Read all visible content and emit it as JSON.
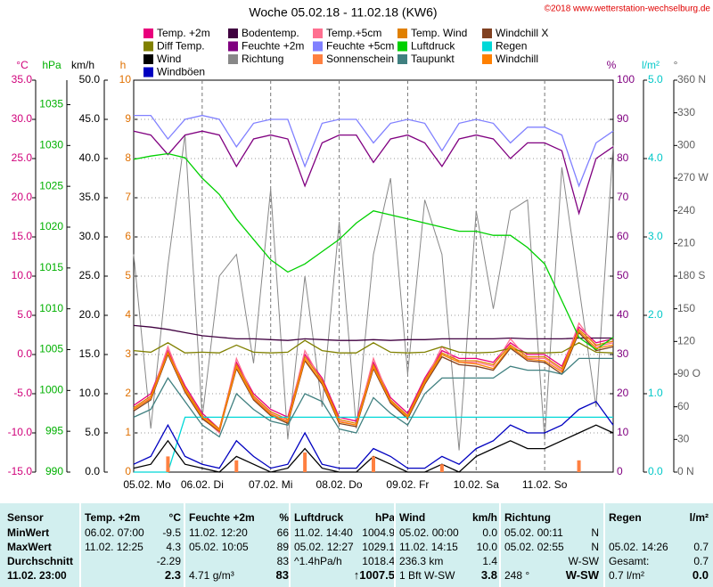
{
  "chart_data": {
    "type": "line",
    "title": "Woche 05.02.18 - 11.02.18 (KW6)",
    "copyright": "©2018 www.wetterstation-wechselburg.de",
    "grid": true,
    "xlim": [
      0,
      168
    ],
    "xticks": [
      {
        "value": 0,
        "label": "05.02.  Mo"
      },
      {
        "value": 24,
        "label": "06.02.  Di"
      },
      {
        "value": 48,
        "label": "07.02.  Mi"
      },
      {
        "value": 72,
        "label": "08.02.  Do"
      },
      {
        "value": 96,
        "label": "09.02.  Fr"
      },
      {
        "value": 120,
        "label": "10.02.  Sa"
      },
      {
        "value": 144,
        "label": "11.02.  So"
      }
    ],
    "axes": [
      {
        "unit": "°C",
        "color": "#d0007a",
        "lim": [
          -15,
          35
        ],
        "ticks": [
          {
            "value": -15,
            "label": "-15.0"
          },
          {
            "value": -10,
            "label": "-10.0"
          },
          {
            "value": -5,
            "label": "-5.0"
          },
          {
            "value": 0,
            "label": "0.0"
          },
          {
            "value": 5,
            "label": "5.0"
          },
          {
            "value": 10,
            "label": "10.0"
          },
          {
            "value": 15,
            "label": "15.0"
          },
          {
            "value": 20,
            "label": "20.0"
          },
          {
            "value": 25,
            "label": "25.0"
          },
          {
            "value": 30,
            "label": "30.0"
          },
          {
            "value": 35,
            "label": "35.0"
          }
        ]
      },
      {
        "unit": "hPa",
        "color": "#00b000",
        "lim": [
          990,
          1038
        ],
        "ticks": [
          990,
          995,
          1000,
          1005,
          1010,
          1015,
          1020,
          1025,
          1030,
          1035
        ]
      },
      {
        "unit": "km/h",
        "color": "#000000",
        "lim": [
          0,
          50
        ],
        "ticks": [
          {
            "value": 0,
            "label": "0.0"
          },
          {
            "value": 5,
            "label": "5.0"
          },
          {
            "value": 10,
            "label": "10.0"
          },
          {
            "value": 15,
            "label": "15.0"
          },
          {
            "value": 20,
            "label": "20.0"
          },
          {
            "value": 25,
            "label": "25.0"
          },
          {
            "value": 30,
            "label": "30.0"
          },
          {
            "value": 35,
            "label": "35.0"
          },
          {
            "value": 40,
            "label": "40.0"
          },
          {
            "value": 45,
            "label": "45.0"
          },
          {
            "value": 50,
            "label": "50.0"
          }
        ]
      },
      {
        "unit": "h",
        "color": "#e07000",
        "lim": [
          0,
          10
        ],
        "ticks": [
          0,
          1,
          2,
          3,
          4,
          5,
          6,
          7,
          8,
          9,
          10
        ]
      },
      {
        "unit": "%",
        "color": "#800080",
        "lim": [
          0,
          100
        ],
        "ticks": [
          0,
          10,
          20,
          30,
          40,
          50,
          60,
          70,
          80,
          90,
          100
        ]
      },
      {
        "unit": "l/m²",
        "color": "#00c8c8",
        "lim": [
          0,
          5
        ],
        "ticks": [
          {
            "value": 0,
            "label": "0.0"
          },
          {
            "value": 1,
            "label": "1.0"
          },
          {
            "value": 2,
            "label": "2.0"
          },
          {
            "value": 3,
            "label": "3.0"
          },
          {
            "value": 4,
            "label": "4.0"
          },
          {
            "value": 5,
            "label": "5.0"
          }
        ]
      },
      {
        "unit": "°",
        "color": "#606060",
        "lim": [
          0,
          360
        ],
        "ticks": [
          {
            "value": 0,
            "label": "0 N"
          },
          30,
          60,
          {
            "value": 90,
            "label": "90 O"
          },
          120,
          150,
          {
            "value": 180,
            "label": "180 S"
          },
          210,
          240,
          {
            "value": 270,
            "label": "270 W"
          },
          300,
          330,
          {
            "value": 360,
            "label": "360 N"
          }
        ]
      }
    ],
    "x": [
      0,
      6,
      12,
      18,
      24,
      30,
      36,
      42,
      48,
      54,
      60,
      66,
      72,
      78,
      84,
      90,
      96,
      102,
      108,
      114,
      120,
      126,
      132,
      138,
      144,
      150,
      156,
      162,
      168
    ],
    "series": [
      {
        "name": "Temp. +2m",
        "color": "#e8007c",
        "axis": "°C",
        "values": [
          -6.5,
          -5,
          0.5,
          -4,
          -7.5,
          -9.5,
          -1,
          -5,
          -7,
          -8,
          0,
          -3,
          -8,
          -8.5,
          -1,
          -5.5,
          -7.5,
          -3,
          0.5,
          -0.5,
          -0.5,
          -1,
          1.5,
          0,
          0,
          -1.5,
          3.5,
          1.5,
          2
        ]
      },
      {
        "name": "Bodentemp.",
        "color": "#400040",
        "axis": "°C",
        "values": [
          3.7,
          3.5,
          3.2,
          2.8,
          2.4,
          2.2,
          2.0,
          2.0,
          1.9,
          1.8,
          2.0,
          1.9,
          1.8,
          1.8,
          1.9,
          1.8,
          1.9,
          1.9,
          2.0,
          2.0,
          2.0,
          2.0,
          2.1,
          2.0,
          2.0,
          2.0,
          2.1,
          2.1,
          2.1
        ]
      },
      {
        "name": "Temp.+5cm",
        "color": "#ff7090",
        "axis": "°C",
        "values": [
          -7,
          -5.5,
          1,
          -4.5,
          -8,
          -10,
          -0.5,
          -5.5,
          -7.5,
          -8.5,
          0.5,
          -3.5,
          -8.5,
          -9,
          -0.5,
          -6,
          -8,
          -3.5,
          1,
          -1,
          -1,
          -1.5,
          2,
          -0.5,
          -0.5,
          -2,
          4,
          1,
          1.5
        ]
      },
      {
        "name": "Temp. Wind",
        "color": "#e08000",
        "axis": "°C",
        "values": [
          -6.8,
          -5.3,
          0.3,
          -4.3,
          -7.8,
          -9.5,
          -1.3,
          -5.3,
          -7.3,
          -8.3,
          -0.3,
          -3.3,
          -8.3,
          -8.8,
          -1.3,
          -5.8,
          -7.8,
          -3.3,
          0.2,
          -0.8,
          -0.8,
          -1.3,
          1.2,
          -0.3,
          -0.3,
          -1.8,
          3.2,
          1.2,
          1.7
        ]
      },
      {
        "name": "Windchill X",
        "color": "#804020",
        "axis": "°C",
        "values": [
          -7.2,
          -5.8,
          0,
          -4.8,
          -8.2,
          -9.8,
          -1.8,
          -5.8,
          -7.8,
          -8.8,
          -0.8,
          -3.8,
          -8.8,
          -9.2,
          -1.8,
          -6.2,
          -8.2,
          -3.8,
          -0.3,
          -1.3,
          -1.5,
          -2,
          0.8,
          -0.8,
          -1,
          -2.5,
          2.8,
          0.5,
          1
        ]
      },
      {
        "name": "Diff Temp.",
        "color": "#808000",
        "axis": "°C",
        "values": [
          0.5,
          0.3,
          1.5,
          0.2,
          0.3,
          0.2,
          1.2,
          0.3,
          0.2,
          0.3,
          1.8,
          0.5,
          0.2,
          0.2,
          1.5,
          0.3,
          0.2,
          0.3,
          1,
          0.3,
          0.2,
          0.3,
          0.8,
          0.2,
          0.2,
          0.3,
          1.5,
          0.3,
          0.2
        ]
      },
      {
        "name": "Feuchte +2m",
        "color": "#800080",
        "axis": "%",
        "values": [
          87,
          86,
          81,
          86,
          87,
          86,
          78,
          85,
          86,
          85,
          73,
          84,
          86,
          86,
          79,
          85,
          86,
          84,
          78,
          85,
          86,
          85,
          80,
          84,
          84,
          82,
          66,
          80,
          83
        ]
      },
      {
        "name": "Feuchte +5cm",
        "color": "#8080ff",
        "axis": "%",
        "values": [
          91,
          91,
          85,
          90,
          91,
          90,
          83,
          89,
          90,
          90,
          78,
          89,
          90,
          90,
          84,
          89,
          90,
          89,
          82,
          89,
          90,
          89,
          84,
          88,
          88,
          86,
          73,
          84,
          87
        ]
      },
      {
        "name": "Luftdruck",
        "color": "#00d000",
        "axis": "hPa",
        "values": [
          1028.3,
          1028.7,
          1029,
          1028.5,
          1026,
          1024,
          1021,
          1018.5,
          1016,
          1014.5,
          1015.5,
          1017,
          1018.5,
          1020.5,
          1022,
          1021.5,
          1021,
          1020.5,
          1020,
          1019.5,
          1019.5,
          1019,
          1019,
          1017.5,
          1015.5,
          1011,
          1006.5,
          1005,
          1006.5
        ]
      },
      {
        "name": "Regen",
        "color": "#00d8d8",
        "axis": "l/m²",
        "values": [
          0,
          0,
          0,
          0.7,
          0.7,
          0.7,
          0.7,
          0.7,
          0.7,
          0.7,
          0.7,
          0.7,
          0.7,
          0.7,
          0.7,
          0.7,
          0.7,
          0.7,
          0.7,
          0.7,
          0.7,
          0.7,
          0.7,
          0.7,
          0.7,
          0.7,
          0.7,
          0.7,
          0.7
        ]
      },
      {
        "name": "Wind",
        "color": "#000000",
        "axis": "km/h",
        "values": [
          0.5,
          1,
          4,
          1,
          0.5,
          0,
          2,
          1,
          0,
          0.5,
          3,
          0.5,
          0,
          0,
          2,
          1,
          0,
          0,
          1,
          0,
          2,
          3,
          4,
          3,
          3,
          4,
          5,
          6,
          5
        ]
      },
      {
        "name": "Richtung",
        "color": "#888888",
        "axis": "°",
        "values": [
          200,
          40,
          190,
          310,
          50,
          180,
          200,
          100,
          260,
          30,
          180,
          60,
          230,
          40,
          200,
          270,
          90,
          250,
          200,
          20,
          240,
          150,
          240,
          250,
          30,
          280,
          170,
          60,
          300
        ]
      },
      {
        "name": "Sonnenschein",
        "color": "#ff8040",
        "axis": "h",
        "values": [
          0,
          0,
          0.4,
          0,
          0,
          0,
          0.3,
          0,
          0,
          0,
          0.5,
          0,
          0,
          0,
          0.4,
          0,
          0,
          0,
          0.2,
          0,
          0,
          0,
          0,
          0,
          0,
          0,
          0.3,
          0,
          0
        ]
      },
      {
        "name": "Taupunkt",
        "color": "#408080",
        "axis": "°C",
        "values": [
          -8,
          -7,
          -3,
          -6,
          -9,
          -10.5,
          -5,
          -7,
          -8.5,
          -9,
          -5,
          -6,
          -9.5,
          -10,
          -5.5,
          -7.5,
          -9,
          -5,
          -3,
          -3,
          -3,
          -3,
          -1.5,
          -2,
          -2,
          -2.5,
          -0.5,
          -0.5,
          -0.5
        ]
      },
      {
        "name": "Windchill",
        "color": "#ff8000",
        "axis": "°C",
        "values": [
          -7,
          -5.6,
          0.2,
          -4.6,
          -8,
          -9.7,
          -1.6,
          -5.6,
          -7.6,
          -8.6,
          -0.6,
          -3.6,
          -8.6,
          -9,
          -1.6,
          -6,
          -8,
          -3.6,
          0,
          -1,
          -1.2,
          -1.8,
          1,
          -0.6,
          -0.8,
          -2.2,
          3,
          0.8,
          1.2
        ]
      },
      {
        "name": "Windböen",
        "color": "#0000c0",
        "axis": "km/h",
        "values": [
          1,
          2,
          6,
          2,
          1,
          0.5,
          4,
          2,
          0.5,
          1,
          5,
          1,
          0.5,
          0.5,
          3,
          2,
          0.5,
          0.5,
          2,
          1,
          3,
          4,
          6,
          5,
          5,
          6,
          8,
          9,
          6
        ]
      }
    ]
  },
  "table": {
    "sensor": {
      "header": "Sensor",
      "rows": [
        "MinWert",
        "MaxWert",
        "Durchschnitt",
        "11.02. 23:00"
      ]
    },
    "columns": [
      {
        "header": "Temp. +2m",
        "unit": "°C",
        "rows": [
          [
            "06.02. 07:00",
            "-9.5"
          ],
          [
            "11.02. 12:25",
            "4.3"
          ],
          [
            null,
            "-2.29"
          ],
          [
            null,
            "2.3"
          ]
        ]
      },
      {
        "header": "Feuchte +2m",
        "unit": "%",
        "rows": [
          [
            "11.02. 12:20",
            "66"
          ],
          [
            "05.02. 10:05",
            "89"
          ],
          [
            null,
            "83"
          ],
          [
            "4.71 g/m³",
            "83"
          ]
        ]
      },
      {
        "header": "Luftdruck",
        "unit": "hPa",
        "rows": [
          [
            "11.02. 14:40",
            "1004.9"
          ],
          [
            "05.02. 12:27",
            "1029.1"
          ],
          [
            "^1.4hPa/h",
            "1018.4"
          ],
          [
            null,
            "↑1007.5"
          ]
        ]
      },
      {
        "header": "Wind",
        "unit": "km/h",
        "rows": [
          [
            "05.02. 00:00",
            "0.0"
          ],
          [
            "11.02. 14:15",
            "10.0"
          ],
          [
            "236.3 km",
            "1.4"
          ],
          [
            "1 Bft W-SW",
            "3.8"
          ]
        ]
      },
      {
        "header": "Richtung",
        "rows": [
          [
            "05.02. 00:11",
            "N"
          ],
          [
            "05.02. 02:55",
            "N"
          ],
          [
            null,
            "W-SW"
          ],
          [
            "248 °",
            "W-SW"
          ]
        ]
      },
      {
        "header": "Regen",
        "unit": "l/m²",
        "rows": [
          [
            null,
            null
          ],
          [
            "05.02. 14:26",
            "0.7"
          ],
          [
            "Gesamt:",
            "0.7"
          ],
          [
            "0.7 l/m²",
            "0.0"
          ]
        ]
      }
    ]
  }
}
